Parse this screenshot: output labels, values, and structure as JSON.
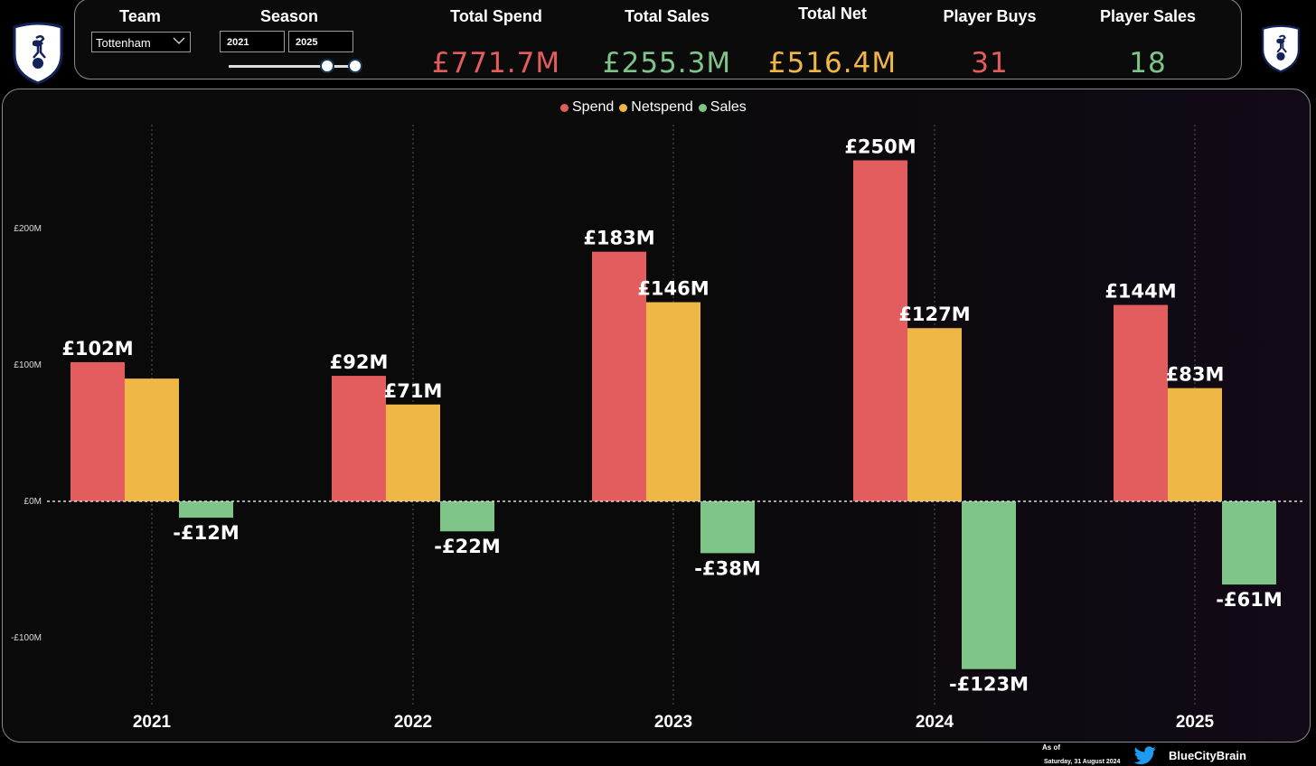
{
  "header": {
    "team_label": "Team",
    "team_value": "Tottenham",
    "season_label": "Season",
    "season_start": "2021",
    "season_end": "2025",
    "season_range_fraction": [
      0.78,
      1.0
    ]
  },
  "kpis": [
    {
      "label": "Total Spend",
      "value": "£771.7M",
      "color": "#e35d5f"
    },
    {
      "label": "Total Sales",
      "value": "£255.3M",
      "color": "#7fc489"
    },
    {
      "label": "Total Net",
      "value": "£516.4M",
      "color": "#efb745"
    },
    {
      "label": "Player Buys",
      "value": "31",
      "color": "#e35d5f"
    },
    {
      "label": "Player Sales",
      "value": "18",
      "color": "#7fc489"
    }
  ],
  "chart_data": {
    "type": "bar",
    "categories": [
      "2021",
      "2022",
      "2023",
      "2024",
      "2025"
    ],
    "series": [
      {
        "name": "Spend",
        "color": "#e35d5f",
        "values": [
          102,
          92,
          183,
          250,
          144
        ],
        "labels": [
          "£102M",
          "£92M",
          "£183M",
          "£250M",
          "£144M"
        ]
      },
      {
        "name": "Netspend",
        "color": "#efb745",
        "values": [
          90,
          71,
          146,
          127,
          83
        ],
        "labels": [
          "",
          "£71M",
          "£146M",
          "£127M",
          "£83M"
        ]
      },
      {
        "name": "Sales",
        "color": "#7fc489",
        "values": [
          -12,
          -22,
          -38,
          -123,
          -61
        ],
        "labels": [
          "-£12M",
          "-£22M",
          "-£38M",
          "-£123M",
          "-£61M"
        ]
      }
    ],
    "y_ticks": [
      200,
      100,
      0,
      -100
    ],
    "y_tick_labels": [
      "£200M",
      "£100M",
      "£0M",
      "-£100M"
    ],
    "ylim": [
      -150,
      270
    ],
    "legend_position": "top-center",
    "grid": "vertical dotted lines at categories"
  },
  "footer": {
    "asof_label": "As of",
    "asof_date": "Saturday, 31 August 2024",
    "handle": "BlueCityBrain"
  },
  "icons": {
    "left_crest": "tottenham-crest-icon",
    "right_crest": "tottenham-crest-icon",
    "social": "twitter-bird-icon"
  }
}
